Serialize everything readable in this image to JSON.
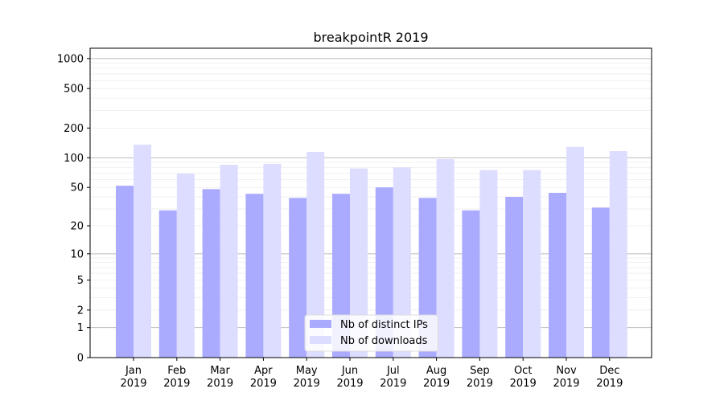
{
  "chart_data": {
    "type": "bar",
    "title": "breakpointR 2019",
    "xlabel": "",
    "ylabel": "",
    "yscale": "log10(1+y)",
    "ylim": [
      0,
      1270
    ],
    "yticks": [
      0,
      1,
      2,
      5,
      10,
      20,
      50,
      100,
      200,
      500,
      1000
    ],
    "categories": [
      "Jan\n2019",
      "Feb\n2019",
      "Mar\n2019",
      "Apr\n2019",
      "May\n2019",
      "Jun\n2019",
      "Jul\n2019",
      "Aug\n2019",
      "Sep\n2019",
      "Oct\n2019",
      "Nov\n2019",
      "Dec\n2019"
    ],
    "series": [
      {
        "name": "Nb of distinct IPs",
        "color": "#aaaaff",
        "values": [
          52,
          29,
          48,
          43,
          39,
          43,
          50,
          39,
          29,
          40,
          44,
          31
        ]
      },
      {
        "name": "Nb of downloads",
        "color": "#ddddff",
        "values": [
          136,
          69,
          85,
          87,
          115,
          78,
          80,
          97,
          75,
          75,
          129,
          117
        ]
      }
    ],
    "legend": "bottom-center",
    "grid": true
  }
}
